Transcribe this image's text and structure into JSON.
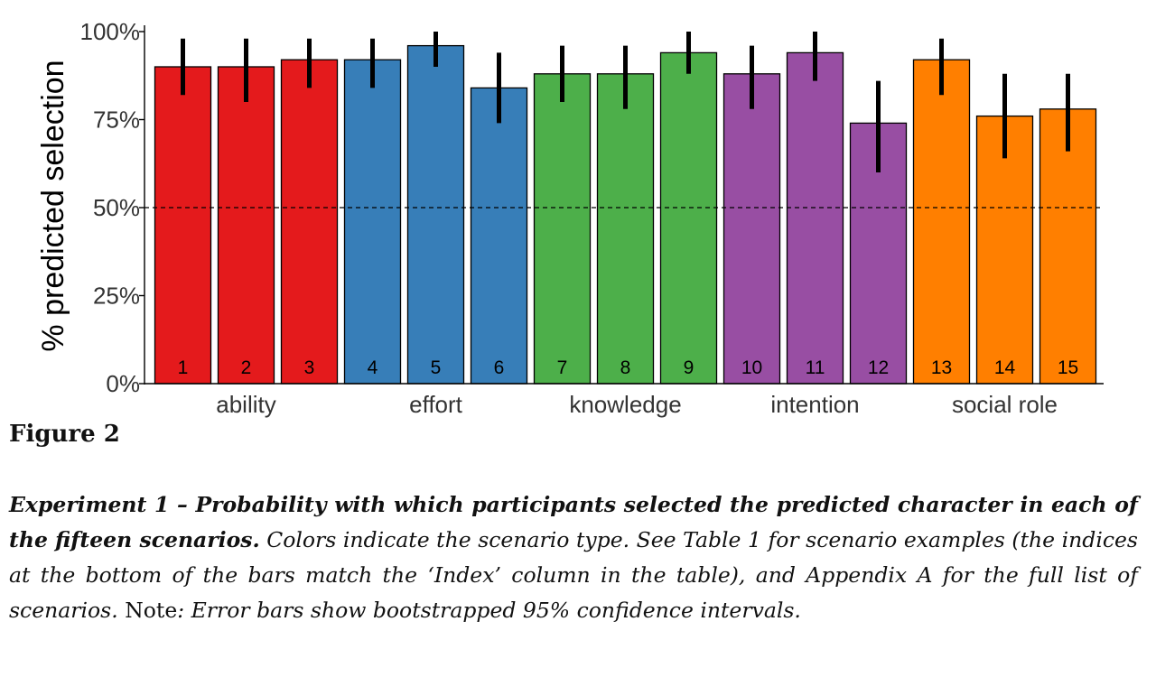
{
  "chart_data": {
    "type": "bar",
    "title": "",
    "xlabel": "",
    "ylabel": "% predicted selection",
    "ylim": [
      0,
      100
    ],
    "y_ticks": [
      "0%",
      "25%",
      "50%",
      "75%",
      "100%"
    ],
    "y_tick_values": [
      0,
      25,
      50,
      75,
      100
    ],
    "reference_line": 50,
    "grid": false,
    "groups": [
      {
        "name": "ability",
        "color": "#E41A1C",
        "indices": [
          1,
          2,
          3
        ]
      },
      {
        "name": "effort",
        "color": "#377EB8",
        "indices": [
          4,
          5,
          6
        ]
      },
      {
        "name": "knowledge",
        "color": "#4DAF4A",
        "indices": [
          7,
          8,
          9
        ]
      },
      {
        "name": "intention",
        "color": "#984EA3",
        "indices": [
          10,
          11,
          12
        ]
      },
      {
        "name": "social role",
        "color": "#FF7F00",
        "indices": [
          13,
          14,
          15
        ]
      }
    ],
    "categories": [
      "1",
      "2",
      "3",
      "4",
      "5",
      "6",
      "7",
      "8",
      "9",
      "10",
      "11",
      "12",
      "13",
      "14",
      "15"
    ],
    "values": [
      90,
      90,
      92,
      92,
      96,
      84,
      88,
      88,
      94,
      88,
      94,
      74,
      92,
      76,
      78
    ],
    "ci_low": [
      82,
      80,
      84,
      84,
      90,
      74,
      80,
      78,
      88,
      78,
      86,
      60,
      82,
      64,
      66
    ],
    "ci_high": [
      98,
      98,
      98,
      98,
      100,
      94,
      96,
      96,
      100,
      96,
      100,
      86,
      98,
      88,
      88
    ]
  },
  "figure": {
    "label": "Figure 2"
  },
  "caption": {
    "bold_title": "Experiment 1 – Probability with which participants selected the predicted character in each of the fifteen scenarios.",
    "body_italic": "Colors indicate the scenario type. See Table 1 for scenario examples (the indices at the bottom of the bars match the ‘Index’ column in the table), and Appendix A for the full list of scenarios.",
    "note_label": "Note",
    "note_italic": ": Error bars show bootstrapped 95% confidence intervals."
  }
}
